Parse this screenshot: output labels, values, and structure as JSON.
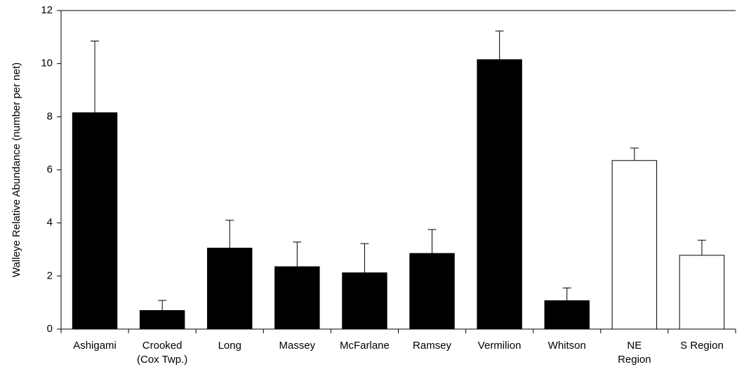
{
  "chart_data": {
    "type": "bar",
    "y_label": "Walleye Relative Abundance (number per net)",
    "categories": [
      "Ashigami",
      "Crooked\n(Cox Twp.)",
      "Long",
      "Massey",
      "McFarlane",
      "Ramsey",
      "Vermilion",
      "Whitson",
      "NE\nRegion",
      "S Region"
    ],
    "values": [
      8.15,
      0.7,
      3.05,
      2.35,
      2.12,
      2.85,
      10.15,
      1.07,
      6.35,
      2.78
    ],
    "errors": [
      2.7,
      0.38,
      1.05,
      0.93,
      1.1,
      0.9,
      1.08,
      0.48,
      0.47,
      0.57
    ],
    "colors": [
      "#000000",
      "#000000",
      "#000000",
      "#000000",
      "#000000",
      "#000000",
      "#000000",
      "#000000",
      "#ffffff",
      "#ffffff"
    ],
    "ylim": [
      0,
      12
    ],
    "yticks": [
      0,
      2,
      4,
      6,
      8,
      10,
      12
    ],
    "grid": false
  }
}
